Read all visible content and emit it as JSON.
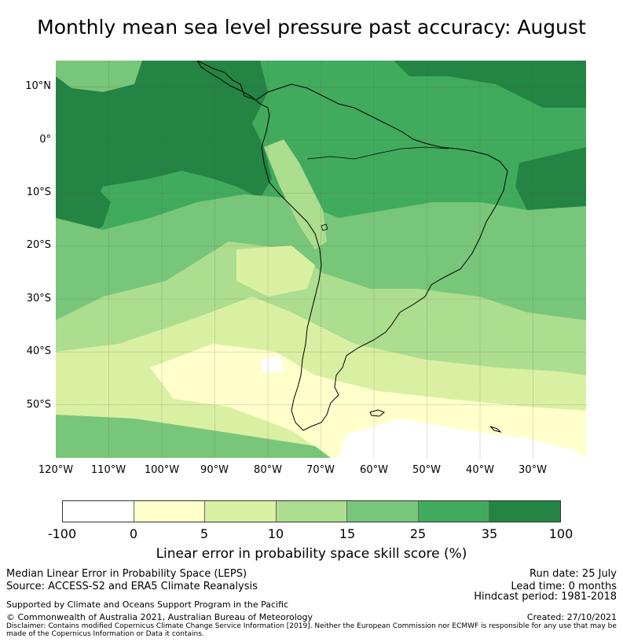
{
  "title": "Monthly mean sea level pressure past accuracy: August",
  "map": {
    "lat_labels": [
      "10°N",
      "0°",
      "10°S",
      "20°S",
      "30°S",
      "40°S",
      "50°S"
    ],
    "lon_labels": [
      "120°W",
      "110°W",
      "100°W",
      "90°W",
      "80°W",
      "70°W",
      "60°W",
      "50°W",
      "40°W",
      "30°W"
    ],
    "extent": {
      "lon": [
        -120,
        -20
      ],
      "lat": [
        -60,
        15
      ]
    }
  },
  "colorbar": {
    "ticks": [
      "-100",
      "0",
      "5",
      "10",
      "15",
      "25",
      "35",
      "100"
    ],
    "colors": [
      "#ffffff",
      "#ffffcc",
      "#d9f0a3",
      "#addd8e",
      "#78c679",
      "#41ab5d",
      "#238443"
    ],
    "label": "Linear error in probability space skill score (%)"
  },
  "footer": {
    "left_line1": "Median Linear Error in Probability Space (LEPS)",
    "left_line2": "Source: ACCESS-S2 and ERA5 Climate Reanalysis",
    "support": "Supported by Climate and Oceans Support Program in the Pacific",
    "copyright": "© Commonwealth of Australia 2021, Australian Bureau of Meteorology",
    "disclaimer": "Disclaimer: Contains modified Copernicus Climate Change Service Information [2019]. Neither the European Commission nor ECMWF is responsible for any use that may be made of the Copernicus Information or Data it contains.",
    "run_date": "Run date: 25 July",
    "lead_time": "Lead time: 0 months",
    "hindcast": "Hindcast period: 1981-2018",
    "created": "Created: 27/10/2021"
  }
}
